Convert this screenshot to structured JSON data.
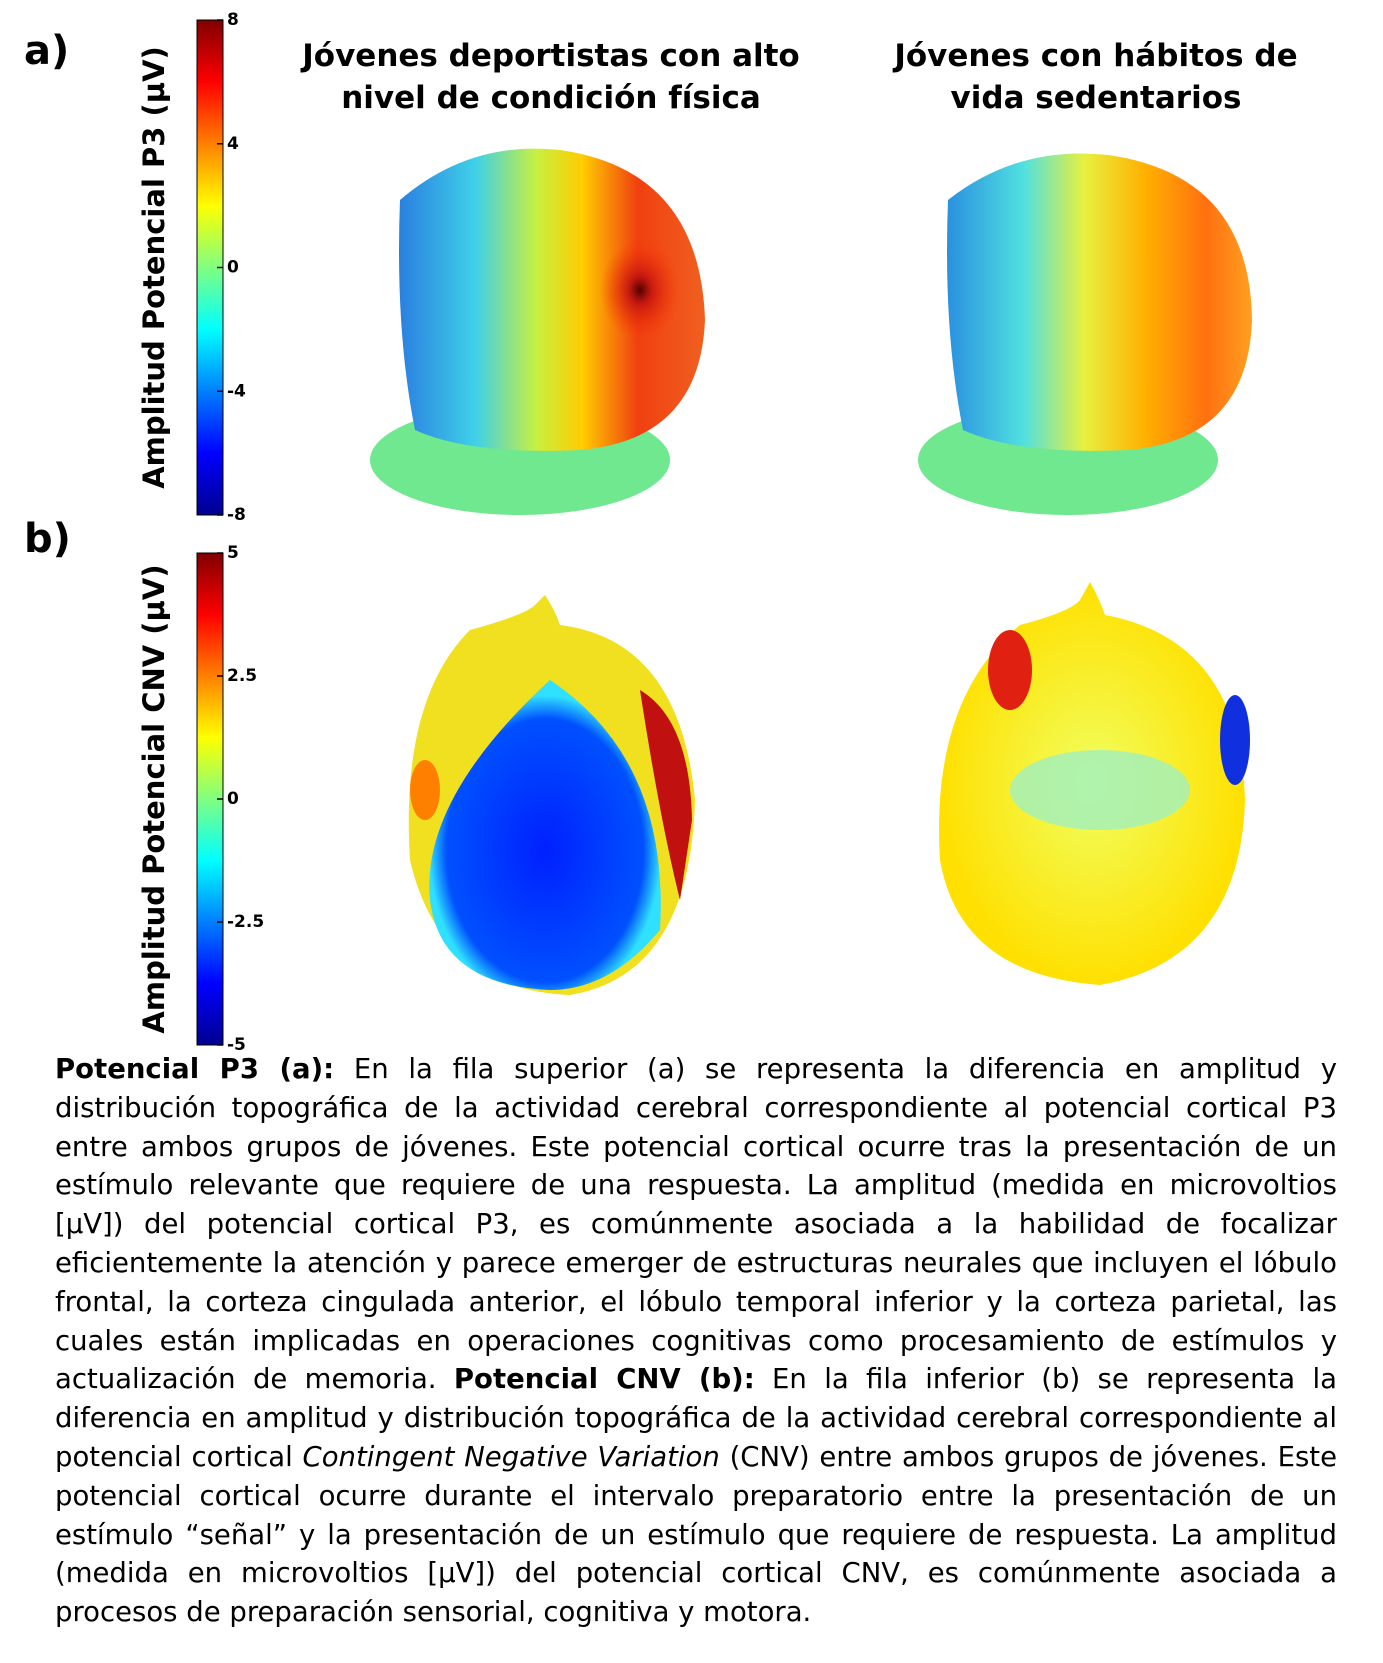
{
  "panels": [
    {
      "label": "a)",
      "colorbar": {
        "label": "Amplitud Potencial P3 (µV)",
        "lim": [
          -8,
          8
        ],
        "ticks": [
          8,
          4,
          0,
          -4,
          -8
        ]
      }
    },
    {
      "label": "b)",
      "colorbar": {
        "label": "Amplitud Potencial CNV (µV)",
        "lim": [
          -5,
          5
        ],
        "ticks": [
          5,
          2.5,
          0,
          -2.5,
          -5
        ]
      }
    }
  ],
  "columns": [
    {
      "title_lines": [
        "Jóvenes deportistas con alto",
        "nivel de condición física"
      ]
    },
    {
      "title_lines": [
        "Jóvenes con hábitos de",
        "vida sedentarios"
      ]
    }
  ],
  "caption": {
    "p3_heading": "Potencial P3 (a):",
    "p3_text": " En la fila superior (a) se representa la diferencia en amplitud y distribución topográfica de la actividad cerebral correspondiente al potencial cortical P3 entre ambos grupos de jóvenes. Este potencial cortical ocurre tras la presentación de un estímulo relevante que requiere de una respuesta. La amplitud (medida en microvoltios [µV]) del potencial cortical P3, es comúnmente asociada a la habilidad de focalizar eficientemente la atención y parece emerger de estructuras neurales que incluyen el lóbulo frontal, la corteza cingulada anterior, el lóbulo temporal inferior y la corteza parietal, las cuales están implicadas en operaciones cognitivas como procesamiento de estímulos y actualización de memoria. ",
    "cnv_heading": "Potencial CNV (b):",
    "cnv_text_1": " En la fila inferior (b) se representa la diferencia en amplitud y distribución topográfica de la actividad cerebral correspondiente al potencial cortical ",
    "cnv_italic": "Contingent Negative Variation",
    "cnv_text_2": " (CNV) entre ambos grupos de jóvenes. Este potencial cortical ocurre durante el intervalo preparatorio entre la presentación de un estímulo “señal” y la presentación de un estímulo que requiere de respuesta. La amplitud (medida en microvoltios [µV]) del potencial cortical CNV, es comúnmente asociada a procesos de preparación sensorial, cognitiva y motora."
  }
}
